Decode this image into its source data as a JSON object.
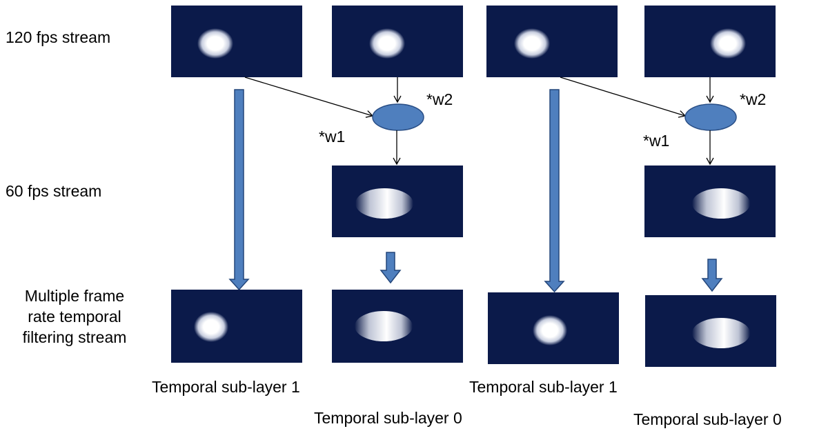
{
  "row_labels": {
    "fps120": "120 fps stream",
    "fps60": "60 fps stream",
    "mfrtf_line1": "Multiple frame",
    "mfrtf_line2": "rate temporal",
    "mfrtf_line3": "filtering stream"
  },
  "weights": {
    "w1": "*w1",
    "w2": "*w2"
  },
  "sublayers": {
    "layer1": "Temporal sub-layer 1",
    "layer0": "Temporal sub-layer 0"
  },
  "colors": {
    "frame_bg": "#0b1a4a",
    "combiner_fill": "#4f7fbe",
    "combiner_stroke": "#2a4f86",
    "thick_arrow_fill": "#4f7fbe",
    "thick_arrow_stroke": "#24467a"
  }
}
